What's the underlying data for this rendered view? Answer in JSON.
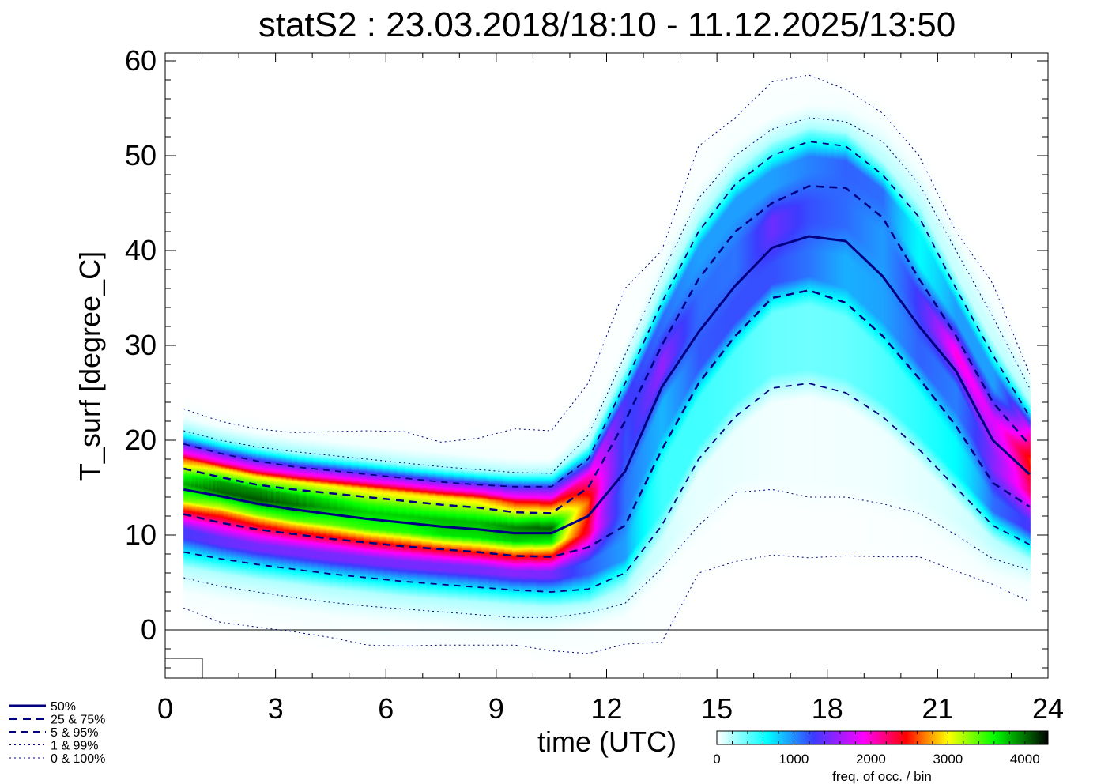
{
  "chart_data": {
    "type": "heatmap",
    "title": "statS2 : 23.03.2018/18:10 - 11.12.2025/13:50",
    "xlabel": "time (UTC)",
    "ylabel": "T_surf [degree_C]",
    "xlim": [
      0,
      24
    ],
    "ylim": [
      -5,
      60.8
    ],
    "xticks": [
      "0",
      "3",
      "6",
      "9",
      "12",
      "15",
      "18",
      "21",
      "24"
    ],
    "xtick_values": [
      0,
      3,
      6,
      9,
      12,
      15,
      18,
      21,
      24
    ],
    "yticks": [
      "0",
      "10",
      "20",
      "30",
      "40",
      "50",
      "60"
    ],
    "ytick_values": [
      0,
      10,
      20,
      30,
      40,
      50,
      60
    ],
    "hours": [
      0.5,
      1.5,
      2.5,
      3.5,
      4.5,
      5.5,
      6.5,
      7.5,
      8.5,
      9.5,
      10.5,
      11.5,
      12.5,
      13.5,
      14.5,
      15.5,
      16.5,
      17.5,
      18.5,
      19.5,
      20.5,
      21.5,
      22.5,
      23.5
    ],
    "percentiles": {
      "p0": [
        2.3,
        0.8,
        0.3,
        -0.2,
        -0.8,
        -1.6,
        -1.7,
        -1.6,
        -1.6,
        -1.6,
        -2.2,
        -2.5,
        -1.5,
        -1.3,
        6.0,
        7.2,
        7.9,
        7.6,
        7.8,
        7.7,
        7.7,
        6.2,
        4.8,
        3.0
      ],
      "p1": [
        5.5,
        4.6,
        4.0,
        3.4,
        2.9,
        2.5,
        2.2,
        1.9,
        1.6,
        1.3,
        1.3,
        1.8,
        2.8,
        6.5,
        11.0,
        14.5,
        14.8,
        14.0,
        14.0,
        13.3,
        12.3,
        10.0,
        7.5,
        6.3
      ],
      "p5": [
        8.2,
        7.5,
        6.9,
        6.4,
        5.9,
        5.5,
        5.1,
        4.8,
        4.5,
        4.2,
        4.0,
        4.3,
        6.0,
        11.0,
        18.0,
        22.5,
        25.5,
        26.0,
        25.0,
        22.5,
        19.0,
        15.0,
        11.0,
        9.0
      ],
      "p25": [
        12.2,
        11.3,
        10.6,
        10.1,
        9.6,
        9.2,
        8.8,
        8.5,
        8.2,
        7.8,
        7.7,
        8.7,
        11.0,
        19.0,
        26.0,
        31.0,
        35.0,
        35.8,
        34.5,
        31.0,
        26.5,
        21.5,
        15.5,
        13.0
      ],
      "p50": [
        14.8,
        14.1,
        13.3,
        12.7,
        12.2,
        11.7,
        11.3,
        10.9,
        10.6,
        10.2,
        10.2,
        12.0,
        16.7,
        25.6,
        31.4,
        36.3,
        40.3,
        41.5,
        41.0,
        37.3,
        32.0,
        27.3,
        20.0,
        16.4
      ],
      "p75": [
        17.0,
        16.1,
        15.3,
        14.8,
        14.4,
        14.0,
        13.6,
        13.2,
        12.9,
        12.4,
        12.3,
        15.0,
        22.0,
        30.0,
        37.0,
        42.0,
        45.0,
        46.8,
        46.6,
        43.5,
        37.0,
        31.0,
        24.0,
        19.5
      ],
      "p95": [
        19.6,
        18.6,
        17.8,
        17.2,
        16.8,
        16.4,
        16.0,
        15.6,
        15.3,
        15.1,
        15.1,
        18.0,
        26.0,
        34.5,
        42.0,
        47.0,
        50.0,
        51.5,
        51.0,
        48.0,
        43.5,
        36.0,
        29.0,
        22.5
      ],
      "p99": [
        21.0,
        20.0,
        19.3,
        18.8,
        18.4,
        18.0,
        17.6,
        17.2,
        16.9,
        16.6,
        16.5,
        20.5,
        29.0,
        37.5,
        45.5,
        50.0,
        52.8,
        54.0,
        53.6,
        51.5,
        47.0,
        40.0,
        33.0,
        25.5
      ],
      "p100": [
        23.3,
        22.0,
        21.2,
        20.8,
        20.9,
        21.0,
        20.9,
        19.8,
        20.2,
        21.2,
        21.0,
        26.0,
        36.0,
        40.0,
        51.0,
        54.0,
        57.8,
        58.5,
        57.0,
        54.5,
        50.0,
        42.0,
        36.5,
        27.0
      ]
    },
    "legend": [
      {
        "label": "50%",
        "style": "solid-thick"
      },
      {
        "label": "25 &  75%",
        "style": "dashed-thick"
      },
      {
        "label": " 5 &  95%",
        "style": "dashed"
      },
      {
        "label": " 1 &  99%",
        "style": "dotted"
      },
      {
        "label": " 0 & 100%",
        "style": "dotted"
      }
    ],
    "legend_position": "bottom-left",
    "colorbar": {
      "label": "freq. of occ. / bin",
      "ticks": [
        "0",
        "1000",
        "2000",
        "3000",
        "4000"
      ],
      "tick_values": [
        0,
        1000,
        2000,
        3000,
        4000
      ],
      "range": [
        0,
        4300
      ],
      "stops": [
        [
          0,
          "#ffffff"
        ],
        [
          650,
          "#00ffff"
        ],
        [
          1250,
          "#3c3cff"
        ],
        [
          1900,
          "#ff00ff"
        ],
        [
          2450,
          "#ff0000"
        ],
        [
          2700,
          "#ff8000"
        ],
        [
          3000,
          "#ffff00"
        ],
        [
          3600,
          "#00ff00"
        ],
        [
          4300,
          "#000000"
        ]
      ]
    },
    "line_color": "#000080",
    "grid": false
  }
}
